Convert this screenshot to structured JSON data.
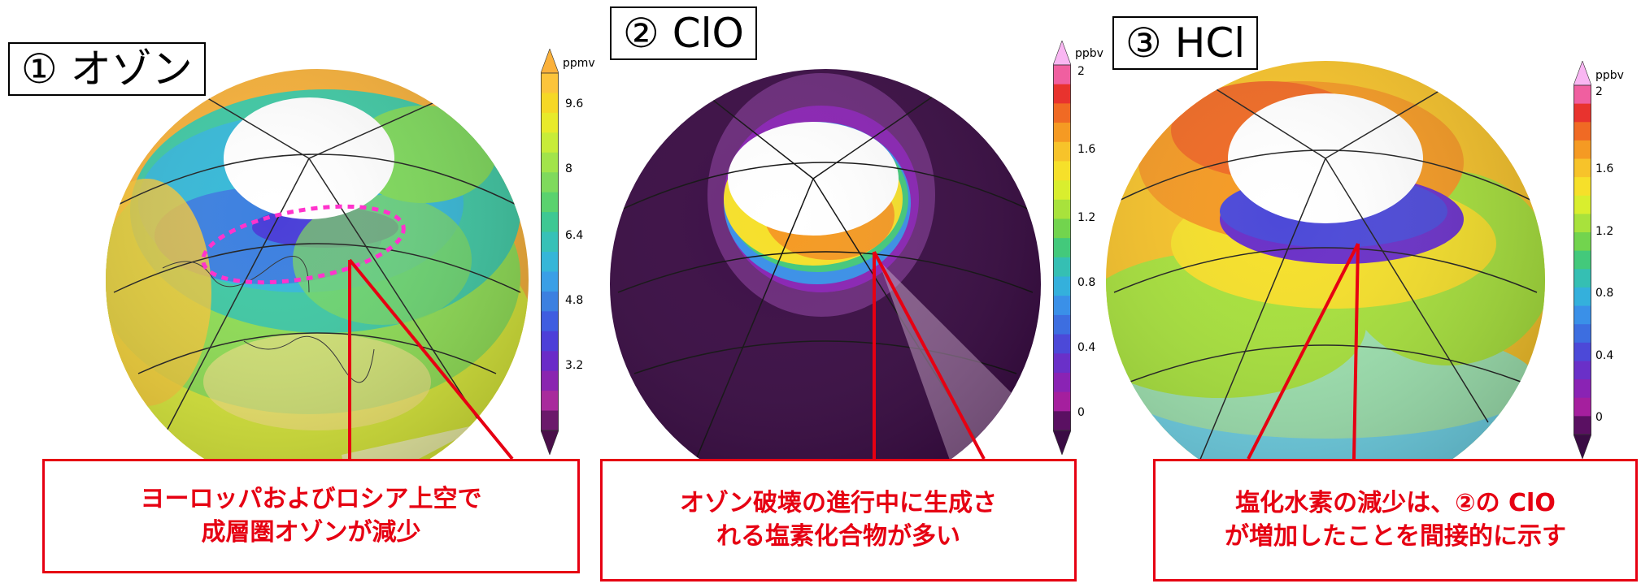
{
  "panels": [
    {
      "title": "① オゾン",
      "unit": "ppmv",
      "ticks": [
        "9.6",
        "8",
        "6.4",
        "4.8",
        "3.2"
      ],
      "colorbar": [
        "#fbb13b",
        "#fcc43b",
        "#f6d826",
        "#e8ea2a",
        "#c8ec38",
        "#a2e44a",
        "#7fda5c",
        "#5ad26e",
        "#3ec893",
        "#37c1b7",
        "#35b6d8",
        "#3a9fe6",
        "#3c80e0",
        "#3f5de0",
        "#4d3fd8",
        "#6a2bc8",
        "#8a25b0",
        "#a82b9c",
        "#6b1a6b",
        "#4a0f4a"
      ],
      "callout": [
        "ヨーロッパおよびロシア上空で",
        "成層圏オゾンが減少"
      ]
    },
    {
      "title": "② ClO",
      "unit": "ppbv",
      "ticks": [
        "2",
        "1.6",
        "1.2",
        "0.8",
        "0.4",
        "0"
      ],
      "colorbar": [
        "#f9b6f2",
        "#f05fa0",
        "#e8332e",
        "#f06a24",
        "#f59a23",
        "#f7c32a",
        "#f6e02a",
        "#d9ee2e",
        "#a8e23c",
        "#72d44e",
        "#43c97b",
        "#35bfb3",
        "#34b0dc",
        "#3a90e8",
        "#3d6ee0",
        "#4c49d8",
        "#6a30c8",
        "#8a23b4",
        "#a51f9e",
        "#5a1062",
        "#3a0c44"
      ],
      "callout": [
        "オゾン破壊の進行中に生成さ",
        "れる塩素化合物が多い"
      ]
    },
    {
      "title": "③ HCl",
      "unit": "ppbv",
      "ticks": [
        "2",
        "1.6",
        "1.2",
        "0.8",
        "0.4",
        "0"
      ],
      "colorbar": [
        "#f9b6f2",
        "#f05fa0",
        "#e8332e",
        "#f06a24",
        "#f59a23",
        "#f7c32a",
        "#f6e02a",
        "#d9ee2e",
        "#a8e23c",
        "#72d44e",
        "#43c97b",
        "#35bfb3",
        "#34b0dc",
        "#3a90e8",
        "#3d6ee0",
        "#4c49d8",
        "#6a30c8",
        "#8a23b4",
        "#a51f9e",
        "#5a1062",
        "#3a0c44"
      ],
      "callout": [
        "塩化水素の減少は、②の ClO",
        "が増加したことを間接的に示す"
      ]
    }
  ],
  "colors": {
    "callout_red": "#e60012",
    "night_purple": "#3a0c44"
  }
}
